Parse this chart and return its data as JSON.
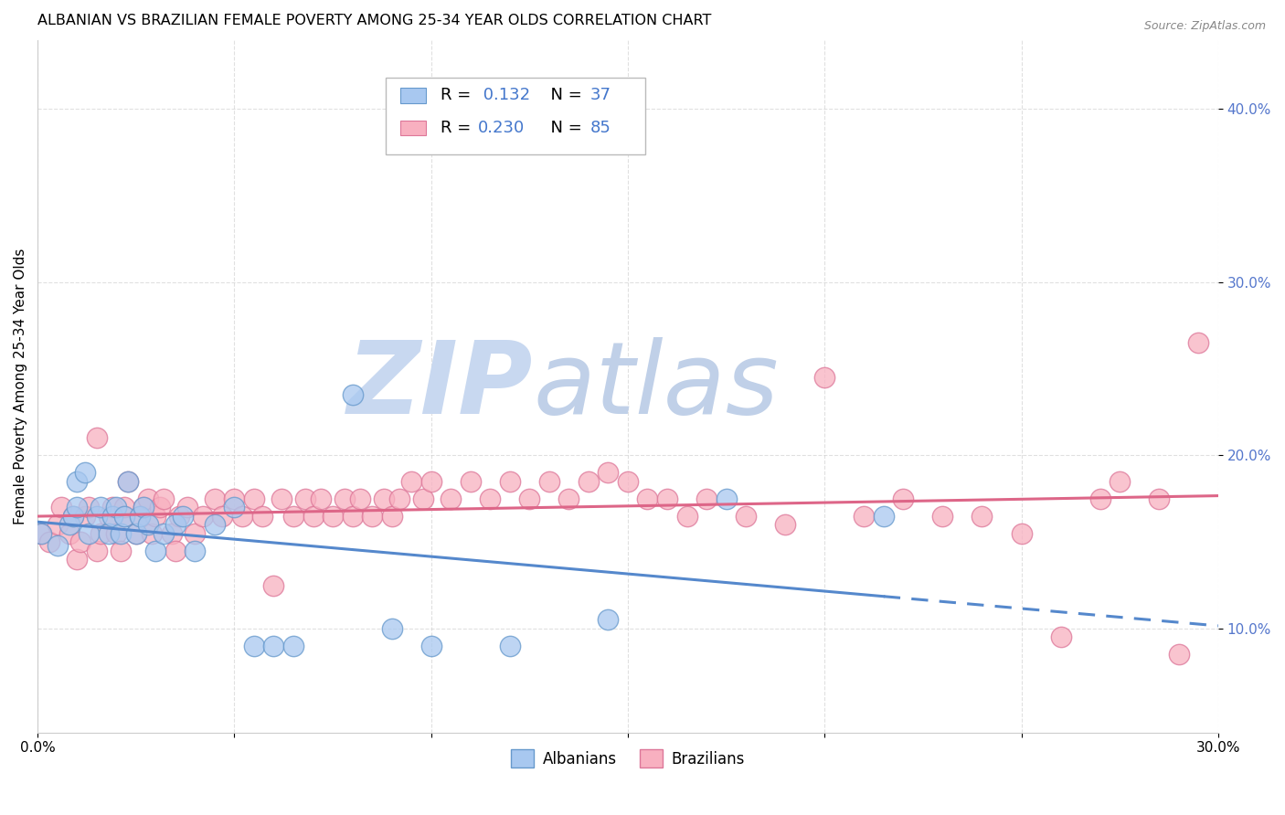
{
  "title": "ALBANIAN VS BRAZILIAN FEMALE POVERTY AMONG 25-34 YEAR OLDS CORRELATION CHART",
  "source": "Source: ZipAtlas.com",
  "ylabel": "Female Poverty Among 25-34 Year Olds",
  "xlim": [
    0.0,
    0.3
  ],
  "ylim": [
    0.04,
    0.44
  ],
  "ytick_vals": [
    0.1,
    0.2,
    0.3,
    0.4
  ],
  "ytick_labels": [
    "10.0%",
    "20.0%",
    "30.0%",
    "40.0%"
  ],
  "xtick_vals": [
    0.0,
    0.05,
    0.1,
    0.15,
    0.2,
    0.25,
    0.3
  ],
  "xtick_labels": [
    "0.0%",
    "",
    "",
    "",
    "",
    "",
    "30.0%"
  ],
  "albanian_R": 0.132,
  "albanian_N": 37,
  "brazilian_R": 0.23,
  "brazilian_N": 85,
  "albanian_fill": "#A8C8F0",
  "albanian_edge": "#6699CC",
  "albanian_line": "#5588CC",
  "brazilian_fill": "#F8B0C0",
  "brazilian_edge": "#DD7799",
  "brazilian_line": "#DD6688",
  "background_color": "#ffffff",
  "grid_color": "#cccccc",
  "watermark_zip": "ZIP",
  "watermark_atlas": "atlas",
  "watermark_color_zip": "#c8d8f0",
  "watermark_color_atlas": "#c0d0e8",
  "title_fontsize": 11.5,
  "label_fontsize": 11,
  "tick_fontsize": 11,
  "source_fontsize": 9,
  "albanian_x": [
    0.001,
    0.005,
    0.008,
    0.009,
    0.01,
    0.01,
    0.012,
    0.013,
    0.015,
    0.016,
    0.018,
    0.019,
    0.02,
    0.021,
    0.022,
    0.023,
    0.025,
    0.026,
    0.027,
    0.028,
    0.03,
    0.032,
    0.035,
    0.037,
    0.04,
    0.045,
    0.05,
    0.055,
    0.06,
    0.065,
    0.08,
    0.09,
    0.1,
    0.12,
    0.145,
    0.175,
    0.215
  ],
  "albanian_y": [
    0.155,
    0.148,
    0.16,
    0.165,
    0.17,
    0.185,
    0.19,
    0.155,
    0.165,
    0.17,
    0.155,
    0.165,
    0.17,
    0.155,
    0.165,
    0.185,
    0.155,
    0.165,
    0.17,
    0.16,
    0.145,
    0.155,
    0.16,
    0.165,
    0.145,
    0.16,
    0.17,
    0.09,
    0.09,
    0.09,
    0.235,
    0.1,
    0.09,
    0.09,
    0.105,
    0.175,
    0.165
  ],
  "brazilian_x": [
    0.001,
    0.003,
    0.005,
    0.006,
    0.008,
    0.009,
    0.01,
    0.011,
    0.012,
    0.013,
    0.015,
    0.015,
    0.016,
    0.018,
    0.019,
    0.02,
    0.021,
    0.022,
    0.022,
    0.023,
    0.025,
    0.026,
    0.027,
    0.028,
    0.029,
    0.03,
    0.031,
    0.032,
    0.034,
    0.035,
    0.036,
    0.038,
    0.04,
    0.042,
    0.045,
    0.047,
    0.05,
    0.052,
    0.055,
    0.057,
    0.06,
    0.062,
    0.065,
    0.068,
    0.07,
    0.072,
    0.075,
    0.078,
    0.08,
    0.082,
    0.085,
    0.088,
    0.09,
    0.092,
    0.095,
    0.098,
    0.1,
    0.105,
    0.11,
    0.115,
    0.12,
    0.125,
    0.13,
    0.135,
    0.14,
    0.145,
    0.15,
    0.155,
    0.16,
    0.165,
    0.17,
    0.18,
    0.19,
    0.2,
    0.21,
    0.22,
    0.23,
    0.24,
    0.25,
    0.26,
    0.27,
    0.275,
    0.285,
    0.29,
    0.295
  ],
  "brazilian_y": [
    0.155,
    0.15,
    0.16,
    0.17,
    0.155,
    0.165,
    0.14,
    0.15,
    0.165,
    0.17,
    0.145,
    0.21,
    0.155,
    0.165,
    0.17,
    0.155,
    0.145,
    0.165,
    0.17,
    0.185,
    0.155,
    0.165,
    0.17,
    0.175,
    0.155,
    0.165,
    0.17,
    0.175,
    0.155,
    0.145,
    0.165,
    0.17,
    0.155,
    0.165,
    0.175,
    0.165,
    0.175,
    0.165,
    0.175,
    0.165,
    0.125,
    0.175,
    0.165,
    0.175,
    0.165,
    0.175,
    0.165,
    0.175,
    0.165,
    0.175,
    0.165,
    0.175,
    0.165,
    0.175,
    0.185,
    0.175,
    0.185,
    0.175,
    0.185,
    0.175,
    0.185,
    0.175,
    0.185,
    0.175,
    0.185,
    0.19,
    0.185,
    0.175,
    0.175,
    0.165,
    0.175,
    0.165,
    0.16,
    0.245,
    0.165,
    0.175,
    0.165,
    0.165,
    0.155,
    0.095,
    0.175,
    0.185,
    0.175,
    0.085,
    0.265
  ]
}
